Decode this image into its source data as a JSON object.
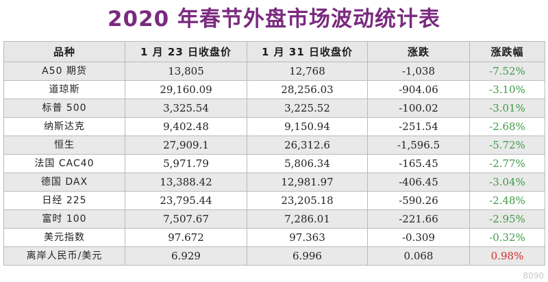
{
  "title": "2020 年春节外盘市场波动统计表",
  "headers": [
    "品种",
    "1 月 23 日收盘价",
    "1 月 31 日收盘价",
    "涨跌",
    "涨跌幅"
  ],
  "rows": [
    {
      "name": "A50 期货",
      "jan23": "13,805",
      "jan31": "12,768",
      "change": "-1,038",
      "pct": "-7.52%"
    },
    {
      "name": "道琼斯",
      "jan23": "29,160.09",
      "jan31": "28,256.03",
      "change": "-904.06",
      "pct": "-3.10%"
    },
    {
      "name": "标普 500",
      "jan23": "3,325.54",
      "jan31": "3,225.52",
      "change": "-100.02",
      "pct": "-3.01%"
    },
    {
      "name": "纳斯达克",
      "jan23": "9,402.48",
      "jan31": "9,150.94",
      "change": "-251.54",
      "pct": "-2.68%"
    },
    {
      "name": "恒生",
      "jan23": "27,909.1",
      "jan31": "26,312.6",
      "change": "-1,596.5",
      "pct": "-5.72%"
    },
    {
      "name": "法国 CAC40",
      "jan23": "5,971.79",
      "jan31": "5,806.34",
      "change": "-165.45",
      "pct": "-2.77%"
    },
    {
      "name": "德国 DAX",
      "jan23": "13,388.42",
      "jan31": "12,981.97",
      "change": "-406.45",
      "pct": "-3.04%"
    },
    {
      "name": "日经 225",
      "jan23": "23,795.44",
      "jan31": "23,205.18",
      "change": "-590.26",
      "pct": "-2.48%"
    },
    {
      "name": "富时 100",
      "jan23": "7,507.67",
      "jan31": "7,286.01",
      "change": "-221.66",
      "pct": "-2.95%"
    },
    {
      "name": "美元指数",
      "jan23": "97.672",
      "jan31": "97.363",
      "change": "-0.309",
      "pct": "-0.32%"
    },
    {
      "name": "离岸人民币/美元",
      "jan23": "6.929",
      "jan31": "6.996",
      "change": "0.068",
      "pct": "0.98%"
    }
  ],
  "colors": {
    "title": "#7a2a7f",
    "down": "#3e9a47",
    "up": "#d42a2a"
  },
  "watermark": "8090"
}
